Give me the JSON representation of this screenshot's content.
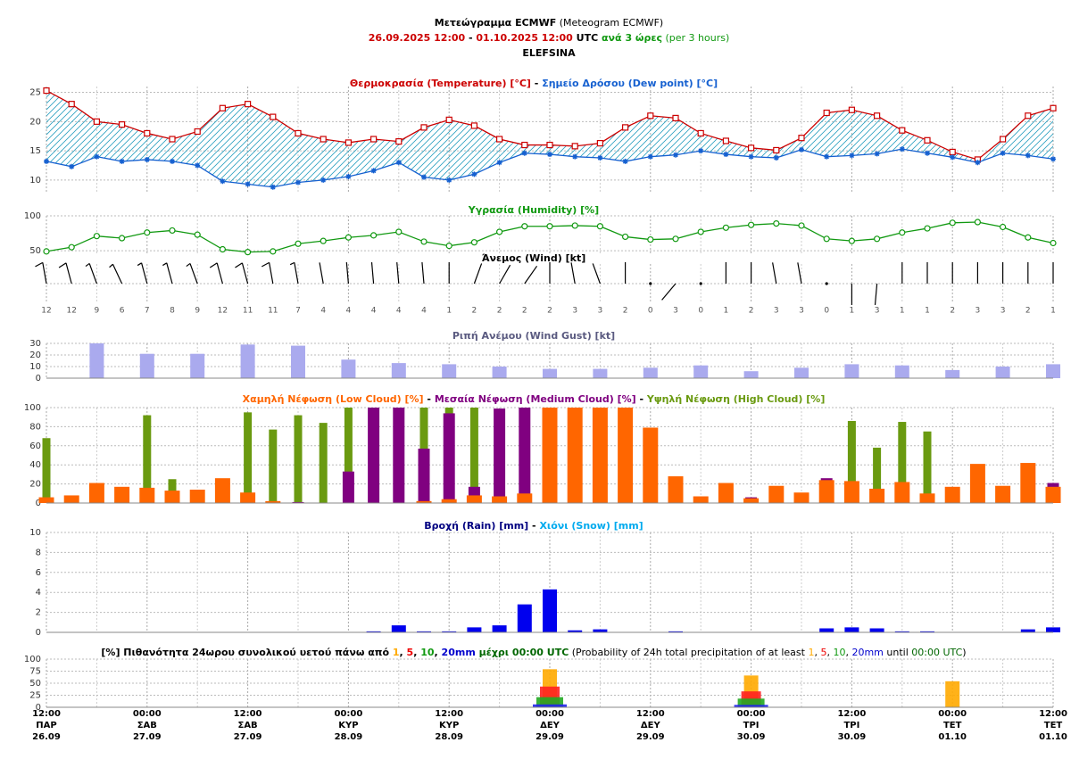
{
  "header": [
    [
      {
        "text": "Μετεώγραμμα ECMWF",
        "bold": true,
        "color": "#000000"
      },
      {
        "text": " (Meteogram ECMWF)",
        "bold": false,
        "color": "#000000"
      }
    ],
    [
      {
        "text": "26.09.2025 12:00",
        "bold": true,
        "color": "#cc0000"
      },
      {
        "text": " - ",
        "bold": true,
        "color": "#000000"
      },
      {
        "text": "01.10.2025 12:00",
        "bold": true,
        "color": "#cc0000"
      },
      {
        "text": " UTC",
        "bold": true,
        "color": "#000000"
      },
      {
        "text": " ανά 3 ώρες",
        "bold": true,
        "color": "#119911"
      },
      {
        "text": " (per 3 hours)",
        "bold": false,
        "color": "#119911"
      }
    ],
    [
      {
        "text": "ELEFSINA",
        "bold": true,
        "color": "#000000"
      }
    ]
  ],
  "time_axis": {
    "xlim": [
      0,
      120
    ],
    "x": [
      0,
      3,
      6,
      9,
      12,
      15,
      18,
      21,
      24,
      27,
      30,
      33,
      36,
      39,
      42,
      45,
      48,
      51,
      54,
      57,
      60,
      63,
      66,
      69,
      72,
      75,
      78,
      81,
      84,
      87,
      90,
      93,
      96,
      99,
      102,
      105,
      108,
      111,
      114,
      117,
      120
    ],
    "xticks": [
      {
        "value": 0,
        "label": [
          "12:00",
          "ΠΑΡ",
          "26.09"
        ]
      },
      {
        "value": 12,
        "label": [
          "00:00",
          "ΣΑΒ",
          "27.09"
        ]
      },
      {
        "value": 24,
        "label": [
          "12:00",
          "ΣΑΒ",
          "27.09"
        ]
      },
      {
        "value": 36,
        "label": [
          "00:00",
          "ΚΥΡ",
          "28.09"
        ]
      },
      {
        "value": 48,
        "label": [
          "12:00",
          "ΚΥΡ",
          "28.09"
        ]
      },
      {
        "value": 60,
        "label": [
          "00:00",
          "ΔΕΥ",
          "29.09"
        ]
      },
      {
        "value": 72,
        "label": [
          "12:00",
          "ΔΕΥ",
          "29.09"
        ]
      },
      {
        "value": 84,
        "label": [
          "00:00",
          "ΤΡΙ",
          "30.09"
        ]
      },
      {
        "value": 96,
        "label": [
          "12:00",
          "ΤΡΙ",
          "30.09"
        ]
      },
      {
        "value": 108,
        "label": [
          "00:00",
          "ΤΕΤ",
          "01.10"
        ]
      },
      {
        "value": 120,
        "label": [
          "12:00",
          "ΤΕΤ",
          "01.10"
        ]
      }
    ]
  },
  "chart_data": [
    {
      "type": "line",
      "title": [
        {
          "text": "Θερμοκρασία (Temperature) [°C]",
          "bold": true,
          "color": "#cc0000"
        },
        {
          "text": " - ",
          "bold": true,
          "color": "#000000"
        },
        {
          "text": "Σημείο Δρόσου (Dew point) [°C]",
          "bold": true,
          "color": "#1560d0"
        }
      ],
      "ylim": [
        8,
        26
      ],
      "yticks": [
        10,
        15,
        20,
        25
      ],
      "grid": true,
      "fill_between_color": "#2aa0c0",
      "series": [
        {
          "color": "#cc0000",
          "marker": "square",
          "values": [
            25.3,
            23,
            20,
            19.5,
            18,
            17,
            18.3,
            22.3,
            23,
            20.8,
            18,
            17,
            16.4,
            17,
            16.6,
            19,
            20.3,
            19.3,
            17,
            16,
            16,
            15.8,
            16.3,
            19,
            21,
            20.6,
            18,
            16.7,
            15.5,
            15.1,
            17.2,
            21.5,
            22,
            21,
            18.5,
            16.8,
            14.8,
            13.5,
            17,
            21,
            22.3
          ]
        },
        {
          "color": "#1560d0",
          "marker": "star",
          "values": [
            13.2,
            12.3,
            14,
            13.2,
            13.5,
            13.2,
            12.5,
            9.8,
            9.3,
            8.8,
            9.6,
            10,
            10.6,
            11.6,
            13,
            10.5,
            10,
            11,
            13,
            14.6,
            14.4,
            14,
            13.8,
            13.2,
            14,
            14.3,
            15,
            14.4,
            14,
            13.8,
            15.2,
            14,
            14.2,
            14.5,
            15.3,
            14.6,
            13.9,
            13,
            14.6,
            14.2,
            13.6
          ]
        }
      ]
    },
    {
      "type": "line",
      "title": [
        {
          "text": "Υγρασία (Humidity) [%]",
          "bold": true,
          "color": "#119911"
        }
      ],
      "ylim": [
        45,
        100
      ],
      "yticks": [
        50,
        100
      ],
      "grid": true,
      "series": [
        {
          "color": "#119911",
          "marker": "circle",
          "values": [
            49,
            55,
            71,
            68,
            76,
            79,
            73,
            52,
            48,
            49,
            60,
            64,
            69,
            72,
            77,
            63,
            57,
            62,
            77,
            85,
            85,
            86,
            85,
            70,
            66,
            67,
            77,
            83,
            87,
            89,
            86,
            67,
            64,
            67,
            76,
            82,
            90,
            91,
            84,
            69,
            61
          ]
        }
      ]
    },
    {
      "type": "wind_barbs",
      "title": [
        {
          "text": "Άνεμος (Wind) [kt]",
          "bold": true,
          "color": "#000000"
        }
      ],
      "color": "#000000",
      "speeds": [
        12,
        12,
        9,
        6,
        7,
        8,
        9,
        12,
        11,
        11,
        7,
        4,
        4,
        4,
        4,
        4,
        1,
        2,
        2,
        2,
        2,
        3,
        3,
        2,
        0,
        3,
        0,
        1,
        2,
        3,
        3,
        0,
        1,
        3,
        1,
        1,
        2,
        3,
        3,
        2,
        1
      ],
      "directions": [
        350,
        345,
        340,
        335,
        345,
        345,
        340,
        345,
        345,
        350,
        350,
        350,
        355,
        355,
        355,
        355,
        0,
        20,
        30,
        35,
        0,
        350,
        340,
        0,
        0,
        220,
        0,
        0,
        0,
        350,
        350,
        0,
        180,
        185,
        0,
        0,
        0,
        0,
        0,
        0,
        0
      ]
    },
    {
      "type": "bar",
      "title": [
        {
          "text": "Ριπή Ανέμου (Wind Gust) [kt]",
          "bold": true,
          "color": "#5a5a80"
        }
      ],
      "ylim": [
        0,
        30
      ],
      "yticks": [
        0,
        10,
        20,
        30
      ],
      "grid": true,
      "x": [
        6,
        12,
        18,
        24,
        30,
        36,
        42,
        48,
        54,
        60,
        66,
        72,
        78,
        84,
        90,
        96,
        102,
        108,
        114,
        120
      ],
      "series": [
        {
          "color": "#aaaaee",
          "values": [
            30,
            21,
            21,
            29,
            28,
            16,
            13,
            12,
            10,
            8,
            8,
            9,
            11,
            6,
            9,
            12,
            11,
            7,
            10,
            12
          ]
        }
      ]
    },
    {
      "type": "bar",
      "title": [
        {
          "text": "Χαμηλή Νέφωση (Low Cloud) [%]",
          "bold": true,
          "color": "#ff6600"
        },
        {
          "text": " - ",
          "bold": true,
          "color": "#000000"
        },
        {
          "text": "Μεσαία Νέφωση (Medium Cloud) [%]",
          "bold": true,
          "color": "#800080"
        },
        {
          "text": " - ",
          "bold": true,
          "color": "#000000"
        },
        {
          "text": "Υψηλή Νέφωση (High Cloud) [%]",
          "bold": true,
          "color": "#6a9a10"
        }
      ],
      "ylim": [
        0,
        100
      ],
      "yticks": [
        0,
        20,
        40,
        60,
        80,
        100
      ],
      "grid": true,
      "series": [
        {
          "color": "#ff6600",
          "values": [
            6,
            8,
            21,
            17,
            16,
            13,
            14,
            26,
            11,
            2,
            0,
            0,
            0,
            0,
            0,
            2,
            4,
            8,
            7,
            10,
            100,
            100,
            100,
            100,
            79,
            28,
            7,
            21,
            5,
            18,
            11,
            24,
            23,
            15,
            22,
            10,
            17,
            41,
            18,
            42,
            17
          ]
        },
        {
          "color": "#800080",
          "values": [
            0,
            0,
            0,
            0,
            0,
            0,
            0,
            0,
            0,
            0,
            1,
            0,
            33,
            100,
            100,
            57,
            94,
            17,
            99,
            100,
            0,
            0,
            0,
            0,
            0,
            0,
            0,
            0,
            6,
            0,
            0,
            26,
            0,
            0,
            0,
            0,
            0,
            0,
            0,
            0,
            21
          ]
        },
        {
          "color": "#6a9a10",
          "values": [
            68,
            0,
            0,
            0,
            92,
            25,
            0,
            0,
            95,
            77,
            92,
            84,
            100,
            0,
            0,
            100,
            100,
            100,
            0,
            0,
            0,
            0,
            0,
            0,
            0,
            0,
            0,
            0,
            0,
            0,
            0,
            0,
            86,
            58,
            85,
            75,
            0,
            0,
            0,
            0,
            0
          ]
        }
      ]
    },
    {
      "type": "bar",
      "title": [
        {
          "text": "Βροχή (Rain) [mm]",
          "bold": true,
          "color": "#000080"
        },
        {
          "text": " - ",
          "bold": true,
          "color": "#000000"
        },
        {
          "text": "Χιόνι (Snow) [mm]",
          "bold": true,
          "color": "#00aaee"
        }
      ],
      "ylim": [
        0,
        10
      ],
      "yticks": [
        0,
        2,
        4,
        6,
        8,
        10
      ],
      "grid": true,
      "series": [
        {
          "color": "#0000ee",
          "values": [
            0,
            0,
            0,
            0,
            0,
            0,
            0,
            0,
            0,
            0,
            0,
            0,
            0,
            0.1,
            0.7,
            0.1,
            0.1,
            0.5,
            0.7,
            2.8,
            4.3,
            0.2,
            0.3,
            0,
            0,
            0.1,
            0,
            0,
            0,
            0,
            0,
            0.4,
            0.5,
            0.4,
            0.1,
            0.1,
            0,
            0,
            0,
            0.3,
            0.5
          ]
        },
        {
          "color": "#00aaee",
          "values": [
            0,
            0,
            0,
            0,
            0,
            0,
            0,
            0,
            0,
            0,
            0,
            0,
            0,
            0,
            0,
            0,
            0,
            0,
            0,
            0,
            0,
            0,
            0,
            0,
            0,
            0,
            0,
            0,
            0,
            0,
            0,
            0,
            0,
            0,
            0,
            0,
            0,
            0,
            0,
            0,
            0
          ]
        }
      ]
    },
    {
      "type": "bar",
      "title": [
        {
          "text": "[%] Πιθανότητα 24ωρου συνολικού υετού πάνω από ",
          "bold": true,
          "color": "#000000"
        },
        {
          "text": "1",
          "bold": true,
          "color": "#ffaa00"
        },
        {
          "text": ", ",
          "bold": true,
          "color": "#000000"
        },
        {
          "text": "5",
          "bold": true,
          "color": "#ee0000"
        },
        {
          "text": ", ",
          "bold": true,
          "color": "#000000"
        },
        {
          "text": "10",
          "bold": true,
          "color": "#119911"
        },
        {
          "text": ", ",
          "bold": true,
          "color": "#000000"
        },
        {
          "text": "20mm",
          "bold": true,
          "color": "#0000cc"
        },
        {
          "text": " μέχρι 00:00 UTC",
          "bold": true,
          "color": "#006600"
        },
        {
          "text": " (Probability of 24h total precipitation of at least ",
          "bold": false,
          "color": "#000000"
        },
        {
          "text": "1",
          "bold": false,
          "color": "#ffaa00"
        },
        {
          "text": ", ",
          "bold": false,
          "color": "#000000"
        },
        {
          "text": "5",
          "bold": false,
          "color": "#ee0000"
        },
        {
          "text": ", ",
          "bold": false,
          "color": "#000000"
        },
        {
          "text": "10",
          "bold": false,
          "color": "#119911"
        },
        {
          "text": ", ",
          "bold": false,
          "color": "#000000"
        },
        {
          "text": "20mm",
          "bold": false,
          "color": "#0000cc"
        },
        {
          "text": " until ",
          "bold": false,
          "color": "#000000"
        },
        {
          "text": "00:00 UTC",
          "bold": false,
          "color": "#006600"
        },
        {
          "text": ")",
          "bold": false,
          "color": "#000000"
        }
      ],
      "ylim": [
        0,
        100
      ],
      "yticks": [
        0,
        25,
        50,
        75,
        100
      ],
      "grid": true,
      "x": [
        12,
        36,
        60,
        84,
        108
      ],
      "series": [
        {
          "color": "#ffaa00",
          "values": [
            0,
            0,
            79,
            66,
            54
          ]
        },
        {
          "color": "#ff2020",
          "values": [
            0,
            0,
            43,
            33,
            0
          ]
        },
        {
          "color": "#22aa22",
          "values": [
            0,
            0,
            21,
            18,
            0
          ]
        },
        {
          "color": "#2222ee",
          "values": [
            0,
            0,
            6,
            5,
            0
          ]
        }
      ]
    }
  ]
}
